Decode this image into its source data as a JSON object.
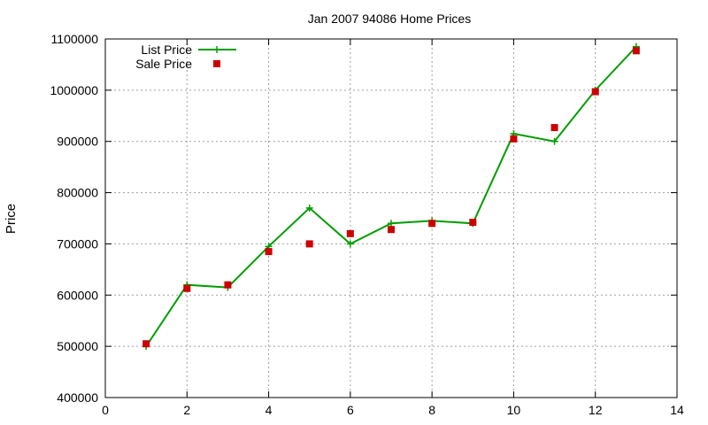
{
  "chart_data": {
    "type": "line",
    "title": "Jan 2007 94086 Home Prices",
    "xlabel": "",
    "ylabel": "Price",
    "xlim": [
      0,
      14
    ],
    "ylim": [
      400000,
      1100000
    ],
    "x_ticks": [
      "0",
      "2",
      "4",
      "6",
      "8",
      "10",
      "12",
      "14"
    ],
    "y_ticks": [
      "400000",
      "500000",
      "600000",
      "700000",
      "800000",
      "900000",
      "1000000",
      "1100000"
    ],
    "grid": true,
    "legend_position": "top-left",
    "series": [
      {
        "name": "List Price",
        "style": "line-with-plus-markers",
        "color": "#009e00",
        "x": [
          1,
          2,
          3,
          4,
          5,
          6,
          7,
          8,
          9,
          10,
          11,
          12,
          13
        ],
        "values": [
          500000,
          620000,
          615000,
          695000,
          770000,
          700000,
          740000,
          745000,
          740000,
          915000,
          900000,
          1000000,
          1085000
        ]
      },
      {
        "name": "Sale Price",
        "style": "square-markers",
        "color": "#cc0000",
        "x": [
          1,
          2,
          3,
          4,
          5,
          6,
          7,
          8,
          9,
          10,
          11,
          12,
          13
        ],
        "values": [
          505000,
          613000,
          620000,
          685000,
          700000,
          720000,
          728000,
          740000,
          742000,
          905000,
          927000,
          997000,
          1077000
        ]
      }
    ]
  }
}
